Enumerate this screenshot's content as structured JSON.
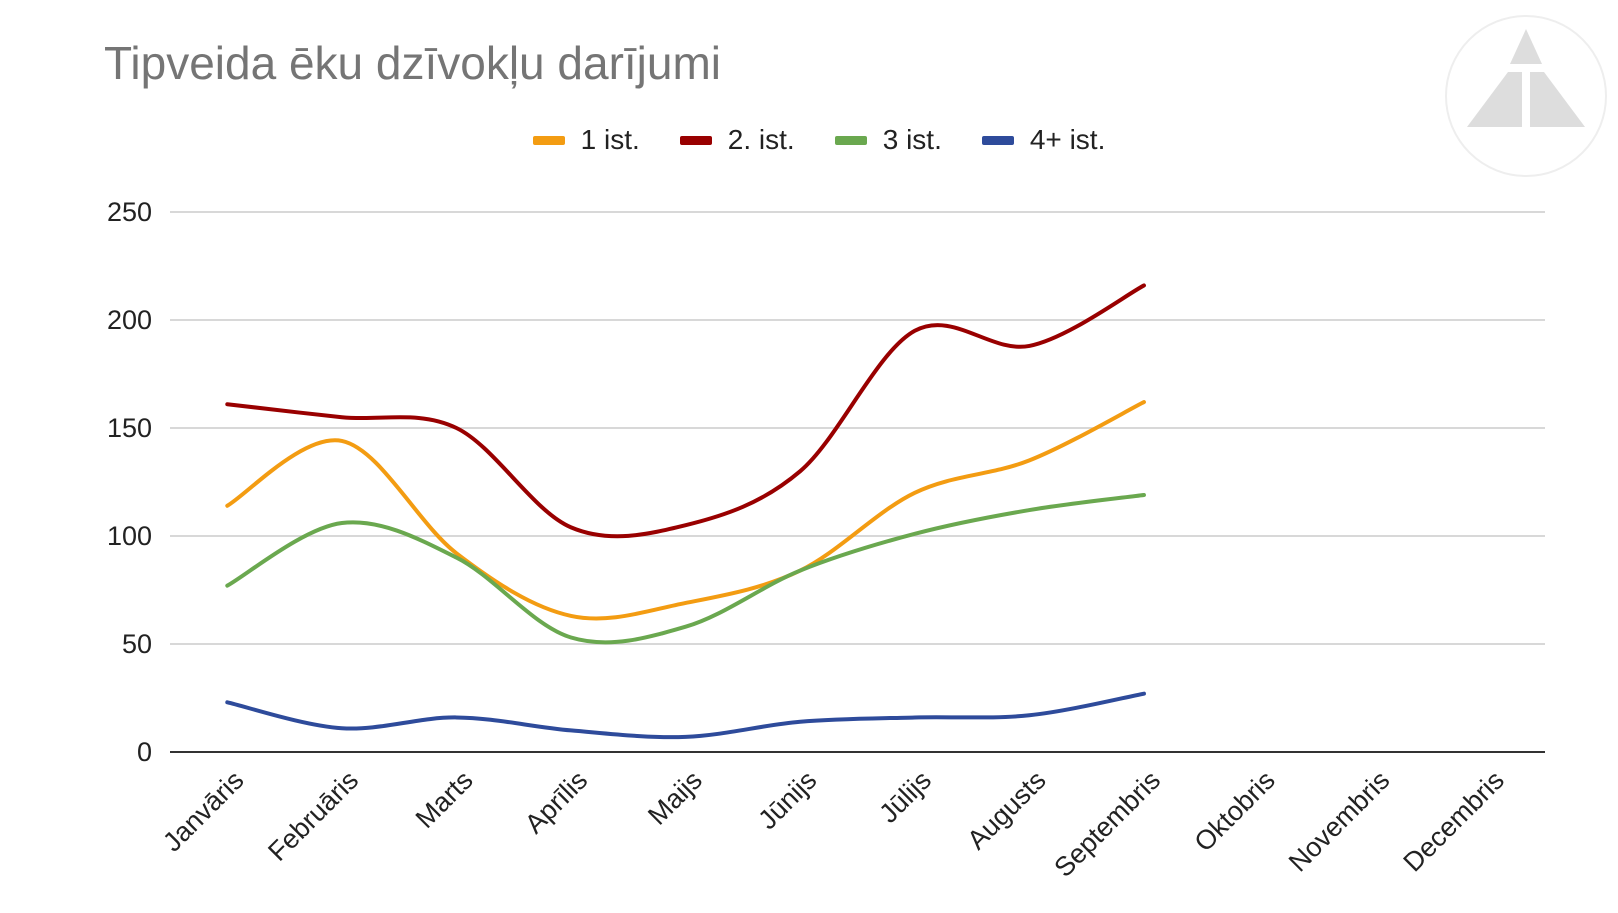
{
  "chart_data": {
    "type": "line",
    "title": "Tipveida ēku dzīvokļu darījumi",
    "xlabel": "",
    "ylabel": "",
    "ylim": [
      0,
      250
    ],
    "yticks": [
      "0",
      "50",
      "100",
      "150",
      "200",
      "250"
    ],
    "categories": [
      "Janvāris",
      "Februāris",
      "Marts",
      "Aprīlis",
      "Maijs",
      "Jūnijs",
      "Jūlijs",
      "Augusts",
      "Septembris",
      "Oktobris",
      "Novembris",
      "Decembris"
    ],
    "series": [
      {
        "name": "1 ist.",
        "color": "#F39C12",
        "values": [
          114,
          144,
          92,
          63,
          69,
          84,
          120,
          135,
          162,
          null,
          null,
          null
        ]
      },
      {
        "name": "2. ist.",
        "color": "#990000",
        "values": [
          161,
          155,
          150,
          104,
          105,
          130,
          195,
          188,
          216,
          null,
          null,
          null
        ]
      },
      {
        "name": "3 ist.",
        "color": "#6AA84F",
        "values": [
          77,
          106,
          90,
          53,
          58,
          84,
          101,
          112,
          119,
          null,
          null,
          null
        ]
      },
      {
        "name": "4+ ist.",
        "color": "#2E4B9B",
        "values": [
          23,
          11,
          16,
          10,
          7,
          14,
          16,
          17,
          27,
          null,
          null,
          null
        ]
      }
    ],
    "grid": true,
    "legend_position": "top",
    "smooth": true
  }
}
